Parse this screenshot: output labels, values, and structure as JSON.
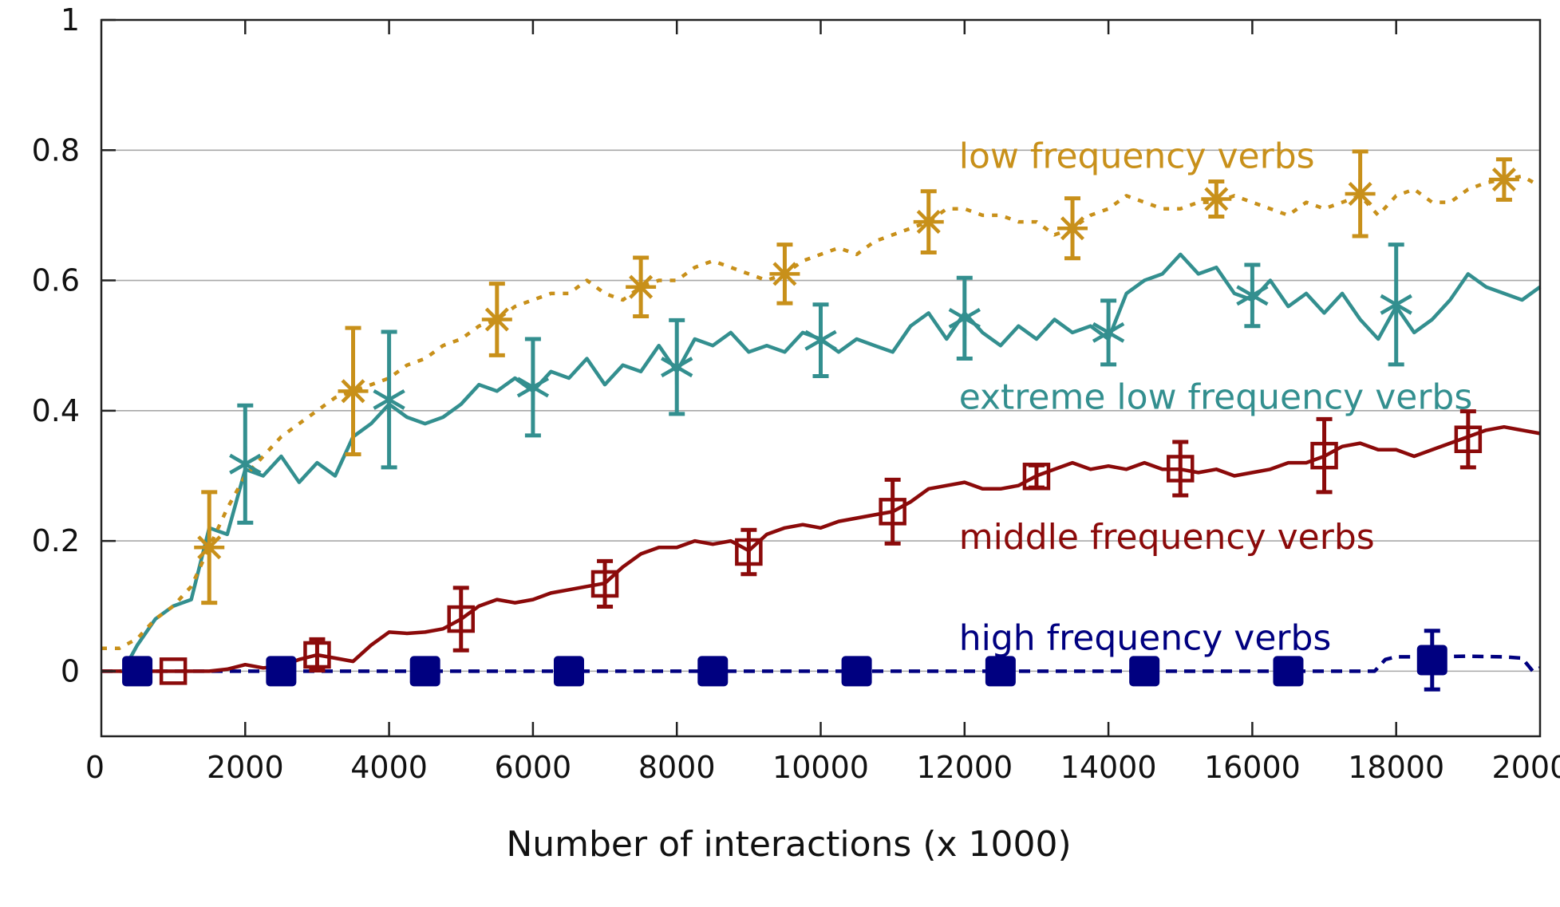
{
  "chart_data": {
    "type": "line",
    "title": "",
    "xlabel": "Number of interactions (x 1000)",
    "ylabel": "",
    "xlim": [
      0,
      20000
    ],
    "ylim": [
      -0.1,
      1.0
    ],
    "xticks": [
      0,
      2000,
      4000,
      6000,
      8000,
      10000,
      12000,
      14000,
      16000,
      18000,
      20000
    ],
    "xtick_labels": [
      "0",
      "2000",
      "4000",
      "6000",
      "8000",
      "10000",
      "12000",
      "14000",
      "16000",
      "18000",
      "20000"
    ],
    "yticks": [
      0,
      0.2,
      0.4,
      0.6,
      0.8,
      1
    ],
    "ytick_labels": [
      "0",
      "0.2",
      "0.4",
      "0.6",
      "0.8",
      "1"
    ],
    "grid": "horizontal",
    "legend": "inline-labels",
    "series": [
      {
        "name": "low frequency verbs",
        "color": "#c8901a",
        "line_style": "dotted",
        "marker": "asterisk",
        "x": [
          0,
          250,
          500,
          750,
          1000,
          1250,
          1500,
          1750,
          2000,
          2250,
          2500,
          2750,
          3000,
          3250,
          3500,
          3750,
          4000,
          4250,
          4500,
          4750,
          5000,
          5250,
          5500,
          5750,
          6000,
          6250,
          6500,
          6750,
          7000,
          7250,
          7500,
          7750,
          8000,
          8250,
          8500,
          8750,
          9000,
          9250,
          9500,
          9750,
          10000,
          10250,
          10500,
          10750,
          11000,
          11250,
          11500,
          11750,
          12000,
          12250,
          12500,
          12750,
          13000,
          13250,
          13500,
          13750,
          14000,
          14250,
          14500,
          14750,
          15000,
          15250,
          15500,
          15750,
          16000,
          16250,
          16500,
          16750,
          17000,
          17250,
          17500,
          17750,
          18000,
          18250,
          18500,
          18750,
          19000,
          19250,
          19500,
          19750,
          20000
        ],
        "y": [
          0.035,
          0.035,
          0.05,
          0.08,
          0.1,
          0.13,
          0.19,
          0.25,
          0.3,
          0.33,
          0.36,
          0.38,
          0.4,
          0.42,
          0.43,
          0.44,
          0.45,
          0.47,
          0.48,
          0.5,
          0.51,
          0.53,
          0.54,
          0.56,
          0.57,
          0.58,
          0.58,
          0.6,
          0.58,
          0.57,
          0.59,
          0.6,
          0.6,
          0.62,
          0.63,
          0.62,
          0.61,
          0.6,
          0.61,
          0.63,
          0.64,
          0.65,
          0.64,
          0.66,
          0.67,
          0.68,
          0.69,
          0.71,
          0.71,
          0.7,
          0.7,
          0.69,
          0.69,
          0.67,
          0.68,
          0.7,
          0.71,
          0.73,
          0.72,
          0.71,
          0.71,
          0.72,
          0.72,
          0.73,
          0.72,
          0.71,
          0.7,
          0.72,
          0.71,
          0.72,
          0.73,
          0.7,
          0.73,
          0.74,
          0.72,
          0.72,
          0.74,
          0.75,
          0.755,
          0.76,
          0.745
        ],
        "markers": [
          {
            "x": 1500,
            "y": 0.19,
            "err": 0.085
          },
          {
            "x": 3500,
            "y": 0.43,
            "err": 0.097
          },
          {
            "x": 5500,
            "y": 0.54,
            "err": 0.055
          },
          {
            "x": 7500,
            "y": 0.59,
            "err": 0.045
          },
          {
            "x": 9500,
            "y": 0.61,
            "err": 0.045
          },
          {
            "x": 11500,
            "y": 0.69,
            "err": 0.047
          },
          {
            "x": 13500,
            "y": 0.68,
            "err": 0.046
          },
          {
            "x": 15500,
            "y": 0.725,
            "err": 0.027
          },
          {
            "x": 17500,
            "y": 0.733,
            "err": 0.065
          },
          {
            "x": 19500,
            "y": 0.755,
            "err": 0.031
          }
        ],
        "label": "low frequency verbs",
        "label_anchor": {
          "x": 11500,
          "y": 0.795
        }
      },
      {
        "name": "extreme low frequency verbs",
        "color": "#338f8f",
        "line_style": "solid",
        "marker": "x-star",
        "x": [
          300,
          500,
          750,
          1000,
          1250,
          1500,
          1750,
          2000,
          2250,
          2500,
          2750,
          3000,
          3250,
          3500,
          3750,
          4000,
          4250,
          4500,
          4750,
          5000,
          5250,
          5500,
          5750,
          6000,
          6250,
          6500,
          6750,
          7000,
          7250,
          7500,
          7750,
          8000,
          8250,
          8500,
          8750,
          9000,
          9250,
          9500,
          9750,
          10000,
          10250,
          10500,
          10750,
          11000,
          11250,
          11500,
          11750,
          12000,
          12250,
          12500,
          12750,
          13000,
          13250,
          13500,
          13750,
          14000,
          14250,
          14500,
          14750,
          15000,
          15250,
          15500,
          15750,
          16000,
          16250,
          16500,
          16750,
          17000,
          17250,
          17500,
          17750,
          18000,
          18250,
          18500,
          18750,
          19000,
          19250,
          19500,
          19750,
          20000
        ],
        "y": [
          0.0,
          0.04,
          0.08,
          0.1,
          0.11,
          0.22,
          0.21,
          0.31,
          0.3,
          0.33,
          0.29,
          0.32,
          0.3,
          0.36,
          0.38,
          0.41,
          0.39,
          0.38,
          0.39,
          0.41,
          0.44,
          0.43,
          0.45,
          0.43,
          0.46,
          0.45,
          0.48,
          0.44,
          0.47,
          0.46,
          0.5,
          0.46,
          0.51,
          0.5,
          0.52,
          0.49,
          0.5,
          0.49,
          0.52,
          0.51,
          0.49,
          0.51,
          0.5,
          0.49,
          0.53,
          0.55,
          0.51,
          0.55,
          0.52,
          0.5,
          0.53,
          0.51,
          0.54,
          0.52,
          0.53,
          0.51,
          0.58,
          0.6,
          0.61,
          0.64,
          0.61,
          0.62,
          0.58,
          0.57,
          0.6,
          0.56,
          0.58,
          0.55,
          0.58,
          0.54,
          0.51,
          0.56,
          0.52,
          0.54,
          0.57,
          0.61,
          0.59,
          0.58,
          0.57,
          0.59
        ],
        "markers": [
          {
            "x": 2000,
            "y": 0.318,
            "err": 0.09
          },
          {
            "x": 4000,
            "y": 0.417,
            "err": 0.104
          },
          {
            "x": 6000,
            "y": 0.436,
            "err": 0.074
          },
          {
            "x": 8000,
            "y": 0.467,
            "err": 0.072
          },
          {
            "x": 10000,
            "y": 0.508,
            "err": 0.055
          },
          {
            "x": 12000,
            "y": 0.542,
            "err": 0.062
          },
          {
            "x": 14000,
            "y": 0.52,
            "err": 0.049
          },
          {
            "x": 16000,
            "y": 0.577,
            "err": 0.047
          },
          {
            "x": 18000,
            "y": 0.563,
            "err": 0.092
          }
        ],
        "label": "extreme low frequency verbs",
        "label_anchor": {
          "x": 11500,
          "y": 0.425
        }
      },
      {
        "name": "middle frequency verbs",
        "color": "#8b0a0a",
        "line_style": "solid",
        "marker": "open-square",
        "x": [
          0,
          250,
          500,
          750,
          1000,
          1250,
          1500,
          1750,
          2000,
          2250,
          2500,
          2750,
          3000,
          3250,
          3500,
          3750,
          4000,
          4250,
          4500,
          4750,
          5000,
          5250,
          5500,
          5750,
          6000,
          6250,
          6500,
          6750,
          7000,
          7250,
          7500,
          7750,
          8000,
          8250,
          8500,
          8750,
          9000,
          9250,
          9500,
          9750,
          10000,
          10250,
          10500,
          10750,
          11000,
          11250,
          11500,
          11750,
          12000,
          12250,
          12500,
          12750,
          13000,
          13250,
          13500,
          13750,
          14000,
          14250,
          14500,
          14750,
          15000,
          15250,
          15500,
          15750,
          16000,
          16250,
          16500,
          16750,
          17000,
          17250,
          17500,
          17750,
          18000,
          18250,
          18500,
          18750,
          19000,
          19250,
          19500,
          19750,
          20000
        ],
        "y": [
          0,
          0,
          0,
          0,
          0,
          0,
          0,
          0.003,
          0.01,
          0.005,
          0.008,
          0.018,
          0.025,
          0.02,
          0.015,
          0.04,
          0.06,
          0.058,
          0.06,
          0.065,
          0.08,
          0.1,
          0.11,
          0.105,
          0.11,
          0.12,
          0.125,
          0.13,
          0.135,
          0.16,
          0.18,
          0.19,
          0.19,
          0.2,
          0.195,
          0.2,
          0.185,
          0.21,
          0.22,
          0.225,
          0.22,
          0.23,
          0.235,
          0.24,
          0.245,
          0.26,
          0.28,
          0.285,
          0.29,
          0.28,
          0.28,
          0.285,
          0.3,
          0.31,
          0.32,
          0.31,
          0.315,
          0.31,
          0.32,
          0.31,
          0.31,
          0.305,
          0.31,
          0.3,
          0.305,
          0.31,
          0.32,
          0.32,
          0.33,
          0.345,
          0.35,
          0.34,
          0.34,
          0.33,
          0.34,
          0.35,
          0.36,
          0.37,
          0.375,
          0.37,
          0.365
        ],
        "markers": [
          {
            "x": 1000,
            "y": 0.0,
            "err": 0
          },
          {
            "x": 3000,
            "y": 0.025,
            "err": 0.024
          },
          {
            "x": 5000,
            "y": 0.08,
            "err": 0.048
          },
          {
            "x": 7000,
            "y": 0.134,
            "err": 0.035
          },
          {
            "x": 9000,
            "y": 0.183,
            "err": 0.034
          },
          {
            "x": 11000,
            "y": 0.245,
            "err": 0.049
          },
          {
            "x": 13000,
            "y": 0.299,
            "err": 0.017
          },
          {
            "x": 15000,
            "y": 0.311,
            "err": 0.041
          },
          {
            "x": 17000,
            "y": 0.331,
            "err": 0.056
          },
          {
            "x": 19000,
            "y": 0.356,
            "err": 0.043
          }
        ],
        "label": "middle frequency verbs",
        "label_anchor": {
          "x": 11500,
          "y": 0.21
        }
      },
      {
        "name": "high frequency verbs",
        "color": "#000080",
        "line_style": "dashed",
        "marker": "filled-square",
        "x": [
          0,
          17700,
          17850,
          18000,
          18500,
          19000,
          19500,
          19750,
          19900,
          20000
        ],
        "y": [
          0,
          0,
          0.018,
          0.022,
          0.022,
          0.023,
          0.022,
          0.02,
          0.0,
          0.005
        ],
        "markers": [
          {
            "x": 500,
            "y": 0,
            "err": 0
          },
          {
            "x": 2500,
            "y": 0,
            "err": 0
          },
          {
            "x": 4500,
            "y": 0,
            "err": 0
          },
          {
            "x": 6500,
            "y": 0,
            "err": 0
          },
          {
            "x": 8500,
            "y": 0,
            "err": 0
          },
          {
            "x": 10500,
            "y": 0,
            "err": 0
          },
          {
            "x": 12500,
            "y": 0,
            "err": 0
          },
          {
            "x": 14500,
            "y": 0,
            "err": 0
          },
          {
            "x": 16500,
            "y": 0,
            "err": 0
          },
          {
            "x": 18500,
            "y": 0.017,
            "err": 0.045
          }
        ],
        "label": "high frequency verbs",
        "label_anchor": {
          "x": 11500,
          "y": 0.055
        }
      }
    ]
  }
}
